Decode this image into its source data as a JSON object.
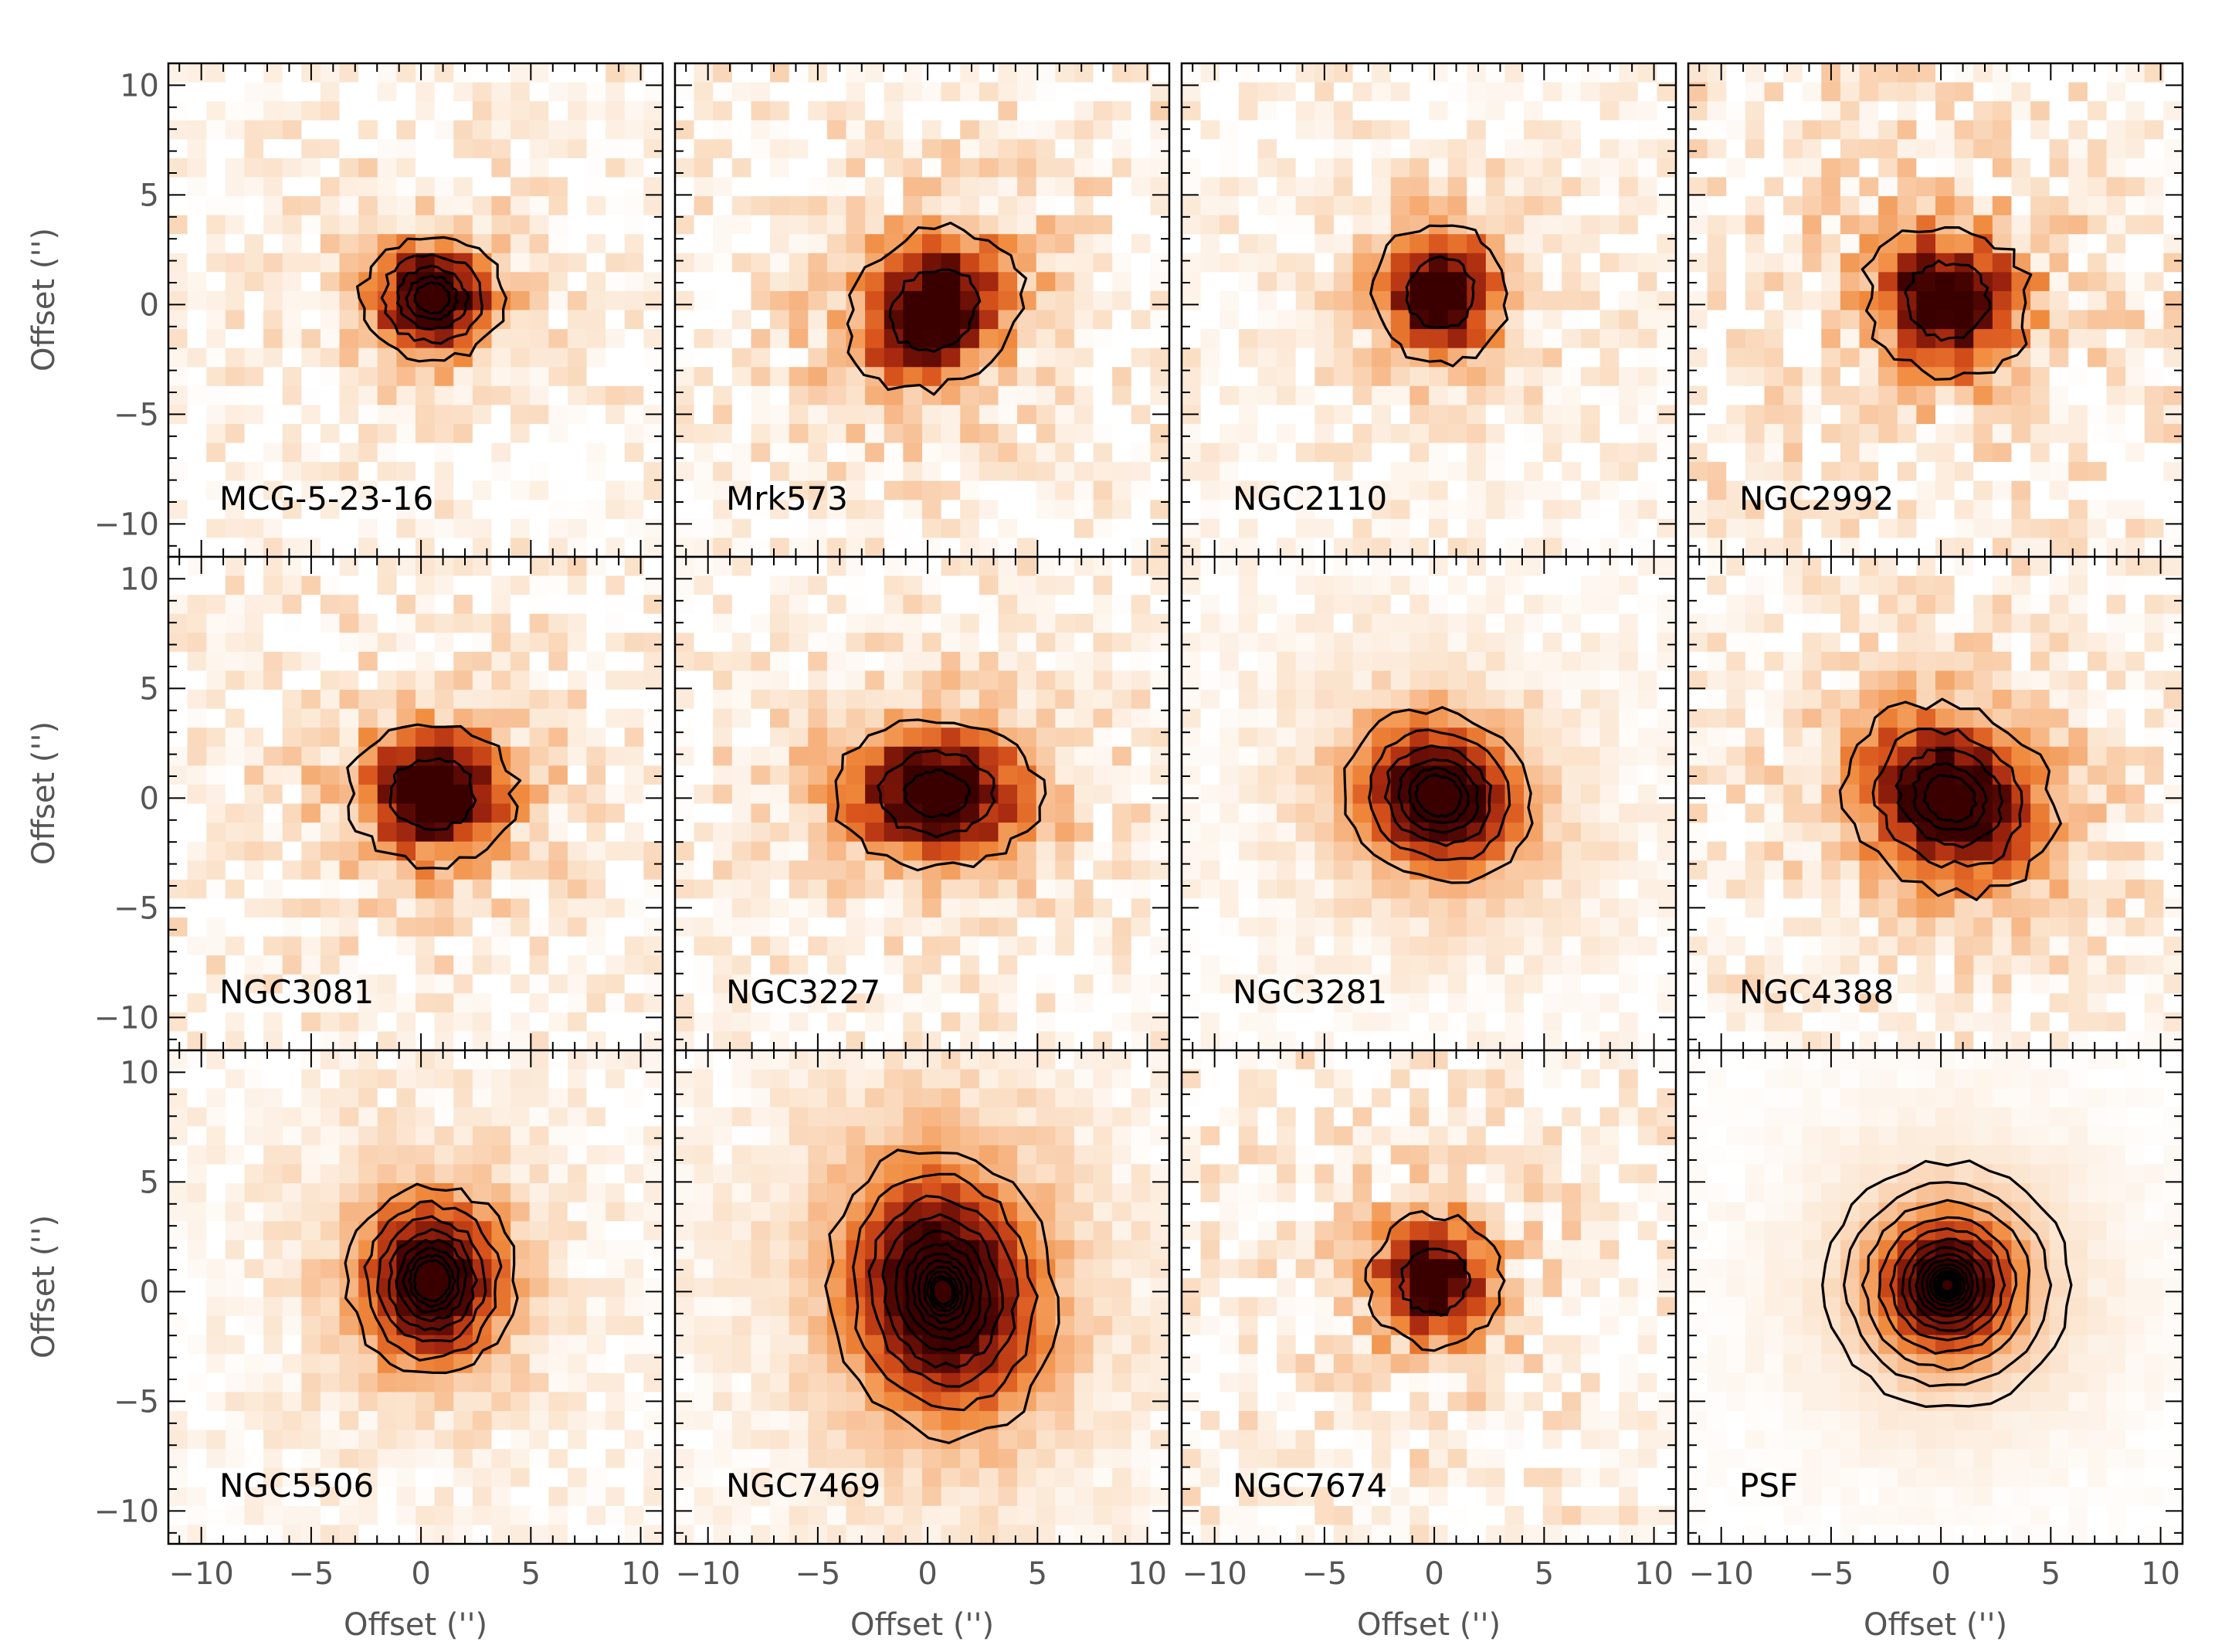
{
  "chart_data": {
    "type": "heatmap",
    "layout": {
      "rows": 3,
      "cols": 4
    },
    "xlabel": "Offset ('')",
    "ylabel": "Offset ('')",
    "xlim": [
      -11.5,
      11
    ],
    "ylim": [
      -11.5,
      11
    ],
    "xticks": [
      -10,
      -5,
      0,
      5,
      10
    ],
    "yticks": [
      -10,
      -5,
      0,
      5,
      10
    ],
    "colormap": [
      "#ffffff",
      "#fbe3cc",
      "#f7b98a",
      "#f08a3c",
      "#d8531c",
      "#a82a10",
      "#6b0f06",
      "#3a0000"
    ],
    "contour_color": "#000000",
    "panels": [
      {
        "name": "MCG-5-23-16",
        "center": [
          0.5,
          0.3
        ],
        "sigma": [
          1.7,
          1.5
        ],
        "tilt": 0,
        "noise": 0.3,
        "contours": 5,
        "contour_spacing": 0.7
      },
      {
        "name": "Mrk573",
        "center": [
          0.3,
          -0.2
        ],
        "sigma": [
          2.2,
          1.8
        ],
        "tilt": 35,
        "noise": 0.35,
        "contours": 2,
        "contour_spacing": 0.5
      },
      {
        "name": "NGC2110",
        "center": [
          0.3,
          0.5
        ],
        "sigma": [
          1.6,
          1.7
        ],
        "tilt": 0,
        "noise": 0.28,
        "contours": 2,
        "contour_spacing": 0.5
      },
      {
        "name": "NGC2992",
        "center": [
          0.3,
          0.2
        ],
        "sigma": [
          2.0,
          1.8
        ],
        "tilt": -20,
        "noise": 0.4,
        "contours": 2,
        "contour_spacing": 0.5
      },
      {
        "name": "NGC3081",
        "center": [
          0.5,
          0.2
        ],
        "sigma": [
          2.0,
          1.7
        ],
        "tilt": 0,
        "noise": 0.35,
        "contours": 2,
        "contour_spacing": 0.5
      },
      {
        "name": "NGC3227",
        "center": [
          0.4,
          0.2
        ],
        "sigma": [
          2.5,
          1.8
        ],
        "tilt": 0,
        "noise": 0.3,
        "contours": 3,
        "contour_spacing": 0.55
      },
      {
        "name": "NGC3281",
        "center": [
          0.2,
          0.1
        ],
        "sigma": [
          2.3,
          2.0
        ],
        "tilt": -25,
        "noise": 0.15,
        "contours": 6,
        "contour_spacing": 0.75
      },
      {
        "name": "NGC4388",
        "center": [
          0.4,
          0.0
        ],
        "sigma": [
          2.6,
          2.2
        ],
        "tilt": -30,
        "noise": 0.3,
        "contours": 5,
        "contour_spacing": 0.7
      },
      {
        "name": "NGC5506",
        "center": [
          0.5,
          0.5
        ],
        "sigma": [
          2.0,
          2.3
        ],
        "tilt": 0,
        "noise": 0.2,
        "contours": 8,
        "contour_spacing": 0.8
      },
      {
        "name": "NGC7469",
        "center": [
          0.7,
          0.0
        ],
        "sigma": [
          2.7,
          3.5
        ],
        "tilt": 10,
        "noise": 0.15,
        "contours": 12,
        "contour_spacing": 0.8
      },
      {
        "name": "NGC7674",
        "center": [
          0.0,
          0.5
        ],
        "sigma": [
          1.6,
          1.6
        ],
        "tilt": 0,
        "noise": 0.35,
        "contours": 2,
        "contour_spacing": 0.5
      },
      {
        "name": "PSF",
        "center": [
          0.3,
          0.3
        ],
        "sigma": [
          2.0,
          2.0
        ],
        "tilt": 0,
        "noise": 0.05,
        "contours": 16,
        "contour_spacing": 0.82
      }
    ]
  }
}
